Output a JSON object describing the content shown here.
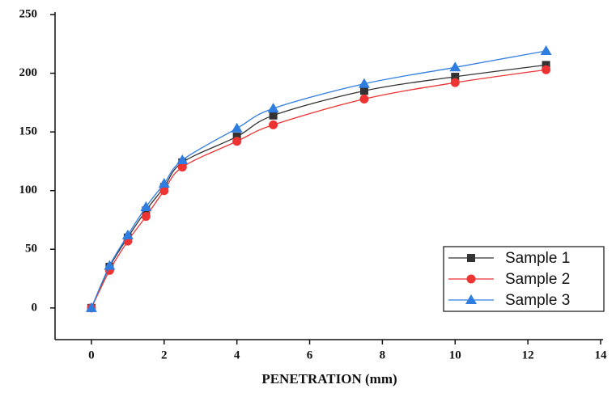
{
  "chart_data": {
    "type": "line",
    "x_label": "PENETRATION (mm)",
    "x": [
      0,
      0.5,
      1,
      1.5,
      2,
      2.5,
      4,
      5,
      7.5,
      10,
      12.5
    ],
    "series": [
      {
        "name": "Sample 1",
        "color": "#333333",
        "marker": "square",
        "values": [
          0,
          35,
          60,
          83,
          103,
          124,
          146,
          164,
          185,
          197,
          207
        ]
      },
      {
        "name": "Sample 2",
        "color": "#ee3333",
        "marker": "circle",
        "values": [
          0,
          32,
          57,
          78,
          100,
          120,
          142,
          156,
          178,
          192,
          203
        ]
      },
      {
        "name": "Sample 3",
        "color": "#2f7de1",
        "marker": "triangle",
        "values": [
          0,
          36,
          62,
          86,
          106,
          126,
          153,
          170,
          191,
          205,
          219
        ]
      }
    ],
    "xlim": [
      -1,
      14
    ],
    "xticks": [
      0,
      2,
      4,
      6,
      8,
      10,
      12,
      14
    ],
    "ylim": [
      -27,
      250
    ],
    "yticks": [
      0,
      50,
      100,
      150,
      200,
      250
    ],
    "legend": "lower right"
  }
}
